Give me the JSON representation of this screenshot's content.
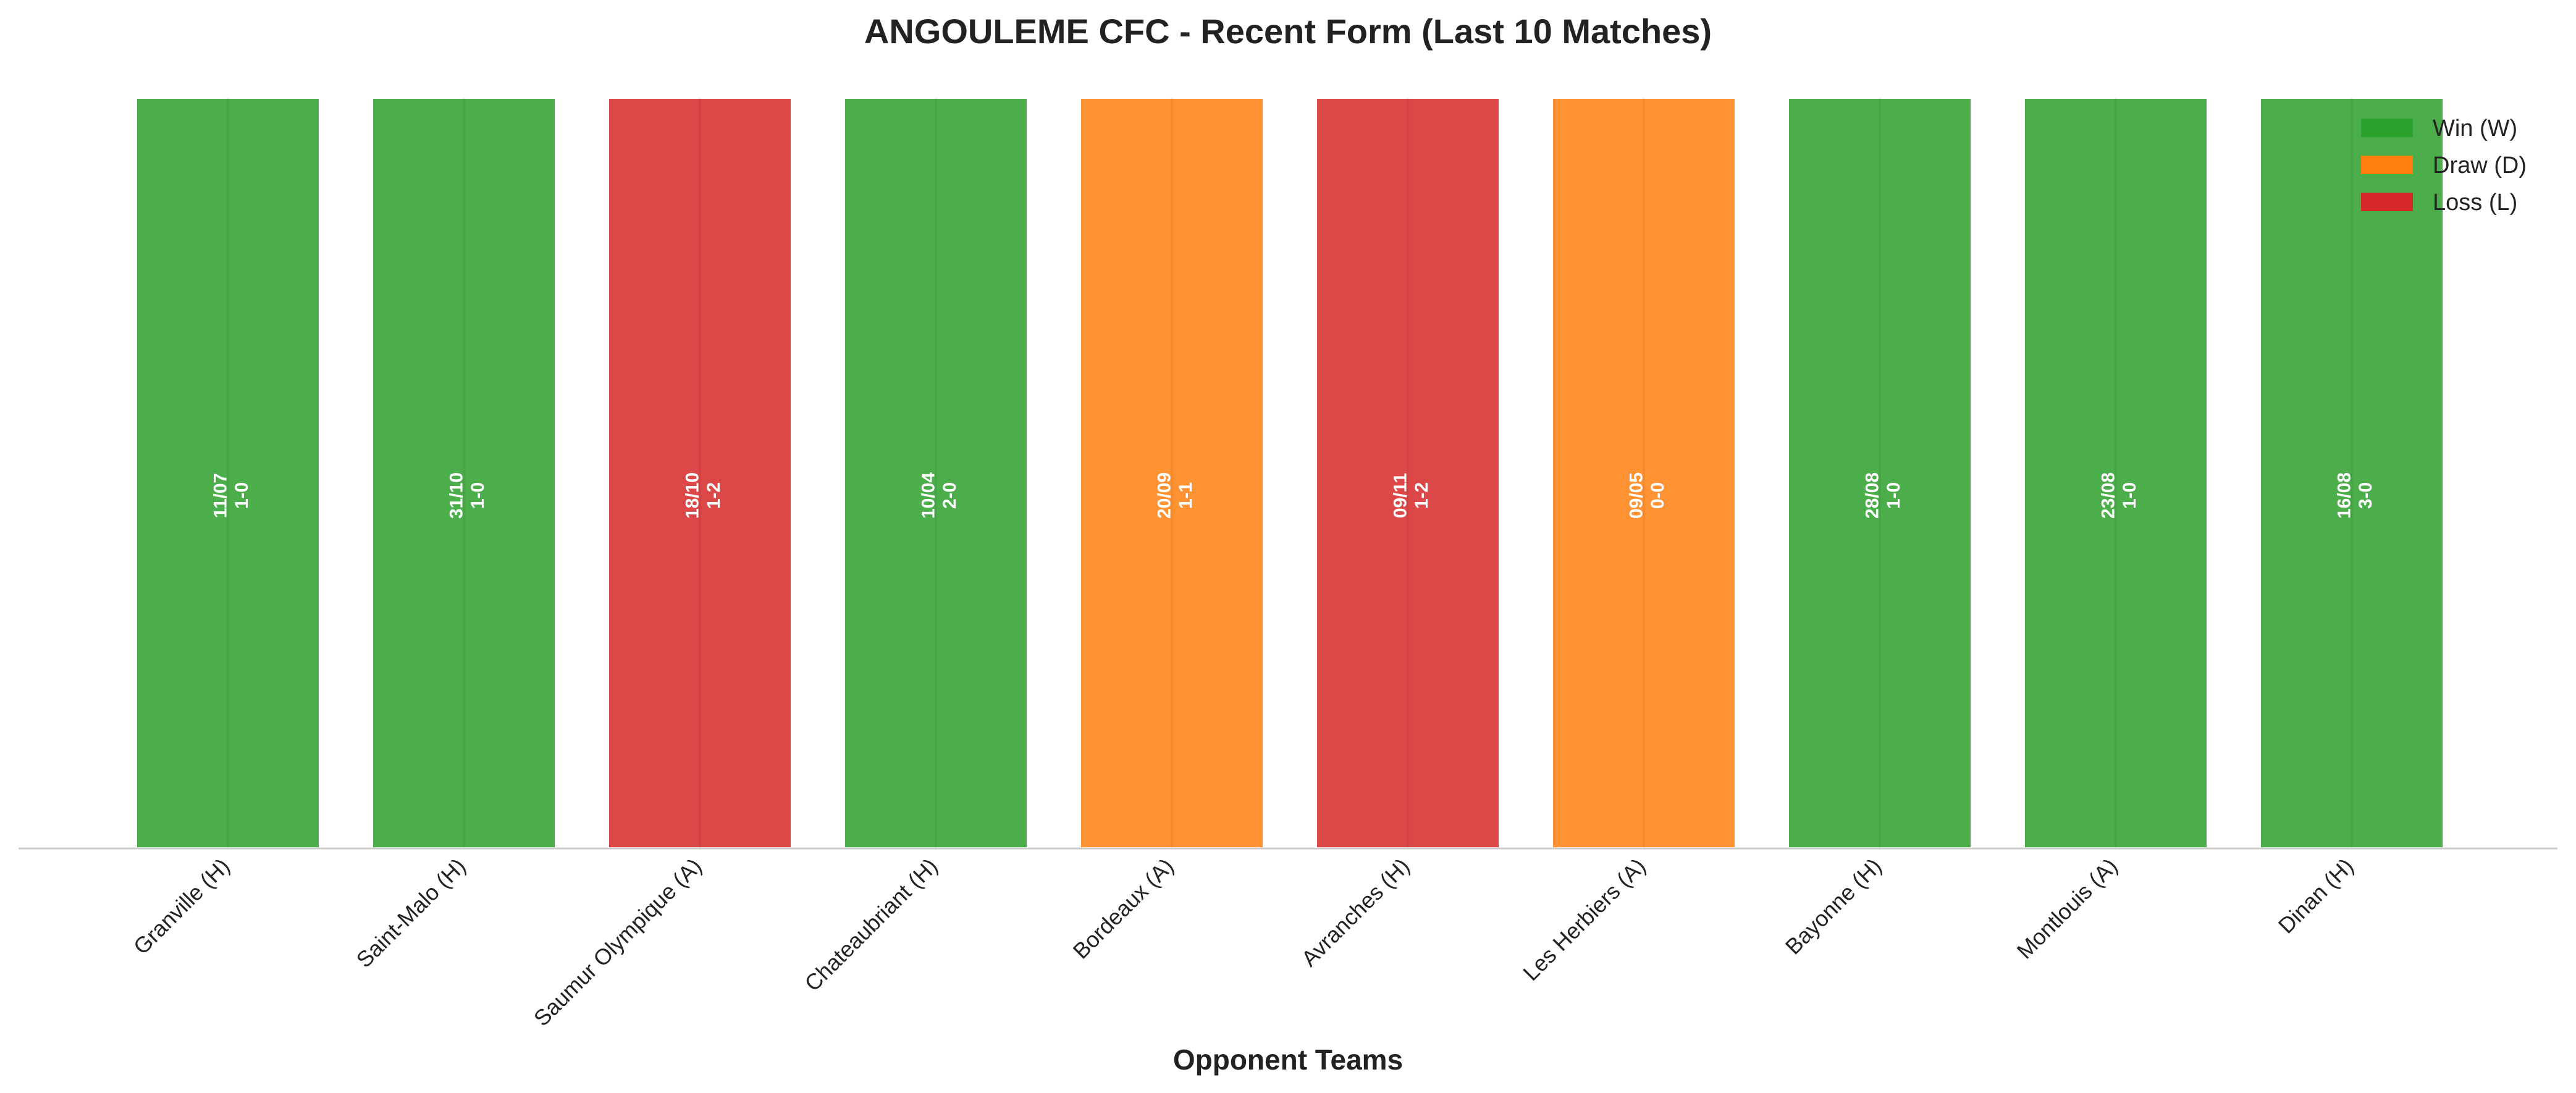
{
  "chart_data": {
    "type": "bar",
    "title": "ANGOULEME CFC - Recent Form (Last 10 Matches)",
    "xlabel": "Opponent Teams",
    "ylabel": "",
    "grid": false,
    "legend_position": "top-right",
    "colors": {
      "W": "#2ca02c",
      "D": "#ff7f0e",
      "L": "#d62728"
    },
    "legend": [
      {
        "key": "W",
        "label": "Win (W)"
      },
      {
        "key": "D",
        "label": "Draw (D)"
      },
      {
        "key": "L",
        "label": "Loss (L)"
      }
    ],
    "categories": [
      "Granville (H)",
      "Saint-Malo (H)",
      "Saumur Olympique (A)",
      "Chateaubriant (H)",
      "Bordeaux (A)",
      "Avranches (H)",
      "Les Herbiers (A)",
      "Bayonne (H)",
      "Montlouis (A)",
      "Dinan (H)"
    ],
    "values": [
      1,
      1,
      1,
      1,
      1,
      1,
      1,
      1,
      1,
      1
    ],
    "results": [
      "W",
      "W",
      "L",
      "W",
      "D",
      "L",
      "D",
      "W",
      "W",
      "W"
    ],
    "dates": [
      "11/07",
      "31/10",
      "18/10",
      "10/04",
      "20/09",
      "09/11",
      "09/05",
      "28/08",
      "23/08",
      "16/08"
    ],
    "scores": [
      "1-0",
      "1-0",
      "1-2",
      "2-0",
      "1-1",
      "1-2",
      "0-0",
      "1-0",
      "1-0",
      "3-0"
    ]
  }
}
